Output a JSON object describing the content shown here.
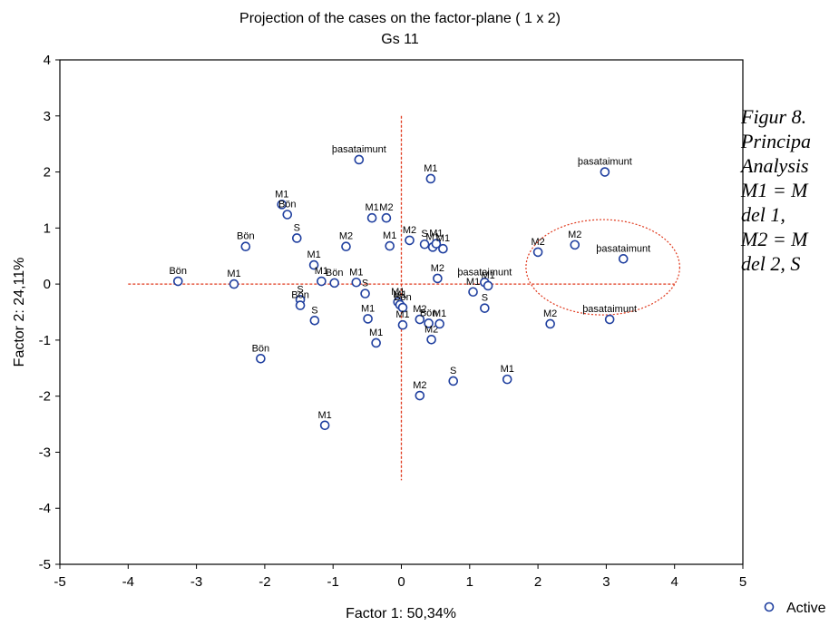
{
  "chart_data": {
    "type": "scatter",
    "title": "Projection of the cases on the factor-plane (  1 x   2)",
    "subtitle": "Gs 11",
    "xlabel": "Factor 1: 50,34%",
    "ylabel": "Factor 2: 24,11%",
    "xlim": [
      -5,
      5
    ],
    "ylim": [
      -5,
      4
    ],
    "xticks": [
      -5,
      -4,
      -3,
      -2,
      -1,
      0,
      1,
      2,
      3,
      4,
      5
    ],
    "yticks": [
      -5,
      -4,
      -3,
      -2,
      -1,
      0,
      1,
      2,
      3
    ],
    "ytick_top": 4,
    "grid": false,
    "reference_lines": {
      "horizontal_y": 0,
      "horizontal_x_range": [
        -4.0,
        4.0
      ],
      "vertical_x": 0,
      "vertical_y_range": [
        -3.5,
        3.0
      ]
    },
    "highlight_ellipse": {
      "center": [
        2.95,
        0.3
      ],
      "radii": [
        2.25,
        1.7
      ]
    },
    "marker_color": "#1f3f9f",
    "reference_line_color": "#e03a1e",
    "points": [
      {
        "label": "Bön",
        "x": -3.27,
        "y": 0.05
      },
      {
        "label": "M1",
        "x": -2.45,
        "y": 0.0
      },
      {
        "label": "Bön",
        "x": -2.28,
        "y": 0.67
      },
      {
        "label": "Bön",
        "x": -2.06,
        "y": -1.33
      },
      {
        "label": "M1",
        "x": -1.75,
        "y": 1.42
      },
      {
        "label": "Bön",
        "x": -1.67,
        "y": 1.24
      },
      {
        "label": "S",
        "x": -1.53,
        "y": 0.82
      },
      {
        "label": "S",
        "x": -1.48,
        "y": -0.28
      },
      {
        "label": "Bön",
        "x": -1.48,
        "y": -0.38
      },
      {
        "label": "M1",
        "x": -1.28,
        "y": 0.34
      },
      {
        "label": "S",
        "x": -1.27,
        "y": -0.65
      },
      {
        "label": "M1",
        "x": -1.17,
        "y": 0.05
      },
      {
        "label": "M1",
        "x": -1.12,
        "y": -2.52
      },
      {
        "label": "Bön",
        "x": -0.98,
        "y": 0.02
      },
      {
        "label": "M2",
        "x": -0.81,
        "y": 0.67
      },
      {
        "label": "M1",
        "x": -0.66,
        "y": 0.03
      },
      {
        "label": "þasataimunt",
        "x": -0.62,
        "y": 2.22
      },
      {
        "label": "S",
        "x": -0.53,
        "y": -0.17
      },
      {
        "label": "M1",
        "x": -0.49,
        "y": -0.62
      },
      {
        "label": "M1",
        "x": -0.43,
        "y": 1.18
      },
      {
        "label": "M1",
        "x": -0.37,
        "y": -1.05
      },
      {
        "label": "M2",
        "x": -0.22,
        "y": 1.18
      },
      {
        "label": "M1",
        "x": -0.17,
        "y": 0.68
      },
      {
        "label": "M1",
        "x": -0.05,
        "y": -0.32
      },
      {
        "label": "M1",
        "x": -0.02,
        "y": -0.37
      },
      {
        "label": "Bön",
        "x": 0.02,
        "y": -0.42
      },
      {
        "label": "M1",
        "x": 0.02,
        "y": -0.73
      },
      {
        "label": "M2",
        "x": 0.12,
        "y": 0.78
      },
      {
        "label": "M2",
        "x": 0.27,
        "y": -0.63
      },
      {
        "label": "M2",
        "x": 0.27,
        "y": -1.99
      },
      {
        "label": "S",
        "x": 0.34,
        "y": 0.71
      },
      {
        "label": "Bön",
        "x": 0.4,
        "y": -0.7
      },
      {
        "label": "M1",
        "x": 0.43,
        "y": 1.88
      },
      {
        "label": "M2",
        "x": 0.44,
        "y": -0.99
      },
      {
        "label": "M1",
        "x": 0.46,
        "y": 0.66
      },
      {
        "label": "M1",
        "x": 0.51,
        "y": 0.72
      },
      {
        "label": "M2",
        "x": 0.53,
        "y": 0.1
      },
      {
        "label": "M1",
        "x": 0.56,
        "y": -0.71
      },
      {
        "label": "M1",
        "x": 0.61,
        "y": 0.63
      },
      {
        "label": "S",
        "x": 0.76,
        "y": -1.73
      },
      {
        "label": "M1",
        "x": 1.05,
        "y": -0.14
      },
      {
        "label": "þasataimunt",
        "x": 1.22,
        "y": 0.03
      },
      {
        "label": "M1",
        "x": 1.27,
        "y": -0.03
      },
      {
        "label": "S",
        "x": 1.22,
        "y": -0.43
      },
      {
        "label": "M1",
        "x": 1.55,
        "y": -1.7
      },
      {
        "label": "M2",
        "x": 2.0,
        "y": 0.57
      },
      {
        "label": "M2",
        "x": 2.18,
        "y": -0.71
      },
      {
        "label": "M2",
        "x": 2.54,
        "y": 0.7
      },
      {
        "label": "þasataimunt",
        "x": 2.98,
        "y": 2.0
      },
      {
        "label": "þasataimunt",
        "x": 3.05,
        "y": -0.63
      },
      {
        "label": "þasataimunt",
        "x": 3.25,
        "y": 0.45
      }
    ],
    "legend": [
      "Active"
    ],
    "legend_position": "bottom-right"
  },
  "caption": {
    "lines": [
      "Figur 8.",
      "Principa",
      "Analysis",
      "M1 = M",
      "del 1,",
      "M2 = M",
      "del 2, S"
    ]
  }
}
